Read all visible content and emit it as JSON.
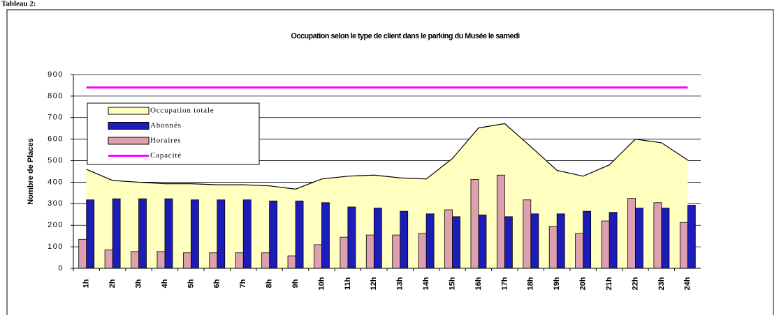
{
  "heading": "Tableau 2:",
  "chart_data": {
    "type": "bar",
    "title": "Occupation selon le type de client dans le parking du Musée le samedi",
    "y_label": "Nombre de Places",
    "categories": [
      "1h",
      "2h",
      "3h",
      "4h",
      "5h",
      "6h",
      "7h",
      "8h",
      "9h",
      "10h",
      "11h",
      "12h",
      "13h",
      "14h",
      "15h",
      "16h",
      "17h",
      "18h",
      "19h",
      "20h",
      "21h",
      "22h",
      "23h",
      "24h"
    ],
    "series": [
      {
        "name": "Occupation totale",
        "type": "area",
        "color": "#ffffc0",
        "values": [
          460,
          408,
          400,
          393,
          393,
          388,
          388,
          383,
          368,
          415,
          428,
          433,
          420,
          415,
          510,
          652,
          672,
          565,
          455,
          428,
          480,
          600,
          583,
          503
        ]
      },
      {
        "name": "Abonnés",
        "type": "bar",
        "color": "#1c1cb8",
        "values": [
          318,
          323,
          323,
          323,
          318,
          318,
          318,
          313,
          313,
          305,
          285,
          280,
          265,
          253,
          240,
          248,
          240,
          253,
          253,
          265,
          260,
          280,
          280,
          293
        ]
      },
      {
        "name": "Horaires",
        "type": "bar",
        "color": "#dda0b0",
        "values": [
          135,
          85,
          78,
          78,
          72,
          72,
          72,
          72,
          58,
          110,
          145,
          155,
          155,
          162,
          272,
          413,
          433,
          318,
          195,
          162,
          220,
          325,
          305,
          213
        ]
      },
      {
        "name": "Capacité",
        "type": "line",
        "color": "#ff00ff",
        "values": [
          840,
          840,
          840,
          840,
          840,
          840,
          840,
          840,
          840,
          840,
          840,
          840,
          840,
          840,
          840,
          840,
          840,
          840,
          840,
          840,
          840,
          840,
          840,
          840
        ]
      }
    ],
    "ylim": [
      0,
      900
    ],
    "yticks": [
      0,
      100,
      200,
      300,
      400,
      500,
      600,
      700,
      800,
      900
    ],
    "grid": true,
    "legend": "top-left"
  }
}
